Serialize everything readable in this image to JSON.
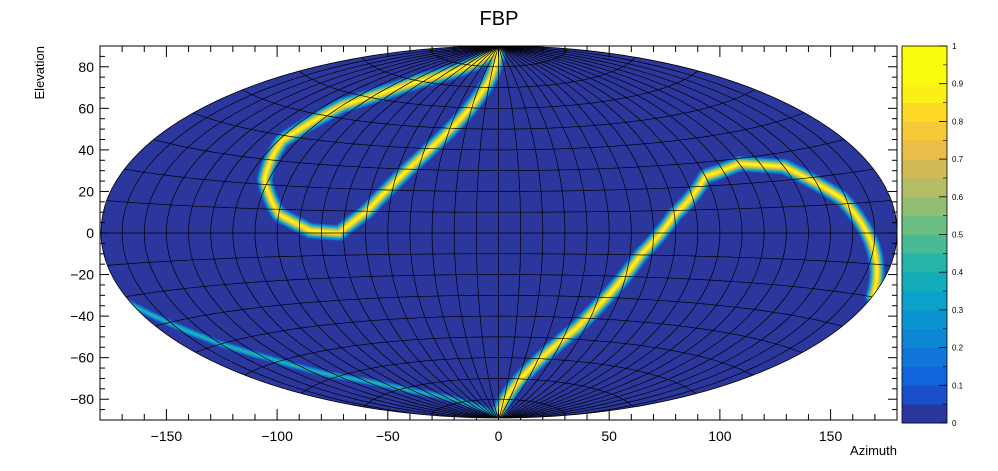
{
  "chart_data": {
    "type": "heatmap",
    "title": "FBP",
    "xlabel": "Azimuth",
    "ylabel": "Elevation",
    "projection": "aitoff",
    "xlim": [
      -180,
      180
    ],
    "ylim": [
      -90,
      90
    ],
    "x_ticks": [
      -150,
      -100,
      -50,
      0,
      50,
      100,
      150
    ],
    "y_ticks": [
      -80,
      -60,
      -40,
      -20,
      0,
      20,
      40,
      60,
      80
    ],
    "grid": true,
    "grid_lon_step": 10,
    "grid_lat_step": 10,
    "colorbar": {
      "min": 0,
      "max": 1,
      "ticks": [
        0,
        0.1,
        0.2,
        0.3,
        0.4,
        0.5,
        0.6,
        0.7,
        0.8,
        0.9,
        1
      ],
      "palette": "parula",
      "levels": 20
    },
    "background_value": 0.03,
    "ridges": [
      {
        "value": 1,
        "points": [
          [
            0,
            90
          ],
          [
            -10,
            75
          ],
          [
            -25,
            55
          ],
          [
            -45,
            30
          ],
          [
            -60,
            10
          ],
          [
            -72,
            0
          ],
          [
            -85,
            1
          ],
          [
            -100,
            8
          ],
          [
            -112,
            22
          ],
          [
            -118,
            38
          ],
          [
            -110,
            55
          ],
          [
            -85,
            70
          ],
          [
            -40,
            84
          ],
          [
            0,
            90
          ]
        ]
      },
      {
        "value": 1,
        "points": [
          [
            0,
            -90
          ],
          [
            15,
            -78
          ],
          [
            30,
            -62
          ],
          [
            45,
            -45
          ],
          [
            55,
            -28
          ],
          [
            65,
            -10
          ],
          [
            80,
            8
          ],
          [
            100,
            24
          ],
          [
            120,
            28
          ],
          [
            140,
            25
          ],
          [
            158,
            12
          ],
          [
            170,
            -5
          ],
          [
            180,
            -20
          ]
        ]
      },
      {
        "value": 0.45,
        "points": [
          [
            -180,
            -22
          ],
          [
            -160,
            -40
          ],
          [
            -135,
            -58
          ],
          [
            -100,
            -72
          ],
          [
            -60,
            -82
          ],
          [
            -25,
            -88
          ],
          [
            0,
            -90
          ]
        ]
      }
    ]
  }
}
